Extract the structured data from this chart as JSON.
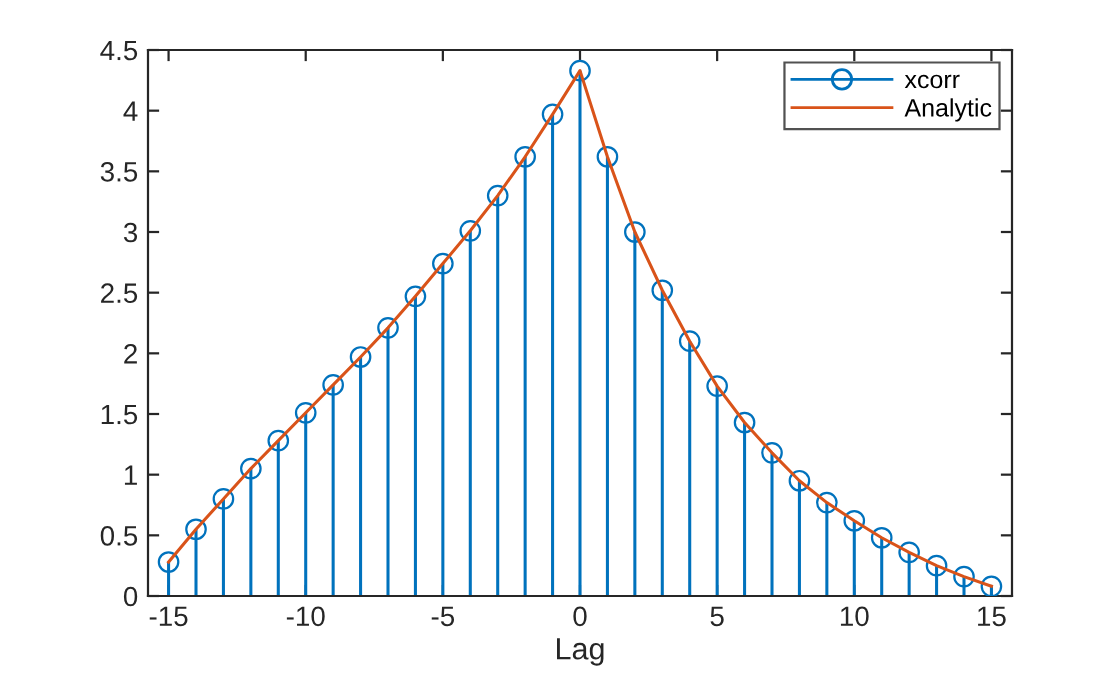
{
  "chart_data": {
    "type": "line",
    "xlabel": "Lag",
    "x": [
      -15,
      -14,
      -13,
      -12,
      -11,
      -10,
      -9,
      -8,
      -7,
      -6,
      -5,
      -4,
      -3,
      -2,
      -1,
      0,
      1,
      2,
      3,
      4,
      5,
      6,
      7,
      8,
      9,
      10,
      11,
      12,
      13,
      14,
      15
    ],
    "series": [
      {
        "name": "xcorr",
        "type": "lollipop",
        "color": "#0072bd",
        "marker": "circle",
        "values": [
          0.28,
          0.55,
          0.8,
          1.05,
          1.28,
          1.51,
          1.74,
          1.97,
          2.21,
          2.47,
          2.74,
          3.01,
          3.3,
          3.62,
          3.97,
          4.33,
          3.62,
          3.0,
          2.52,
          2.1,
          1.73,
          1.43,
          1.18,
          0.95,
          0.77,
          0.62,
          0.48,
          0.36,
          0.25,
          0.16,
          0.08
        ]
      },
      {
        "name": "Analytic",
        "color": "#d95319",
        "marker": "none",
        "values": [
          0.28,
          0.55,
          0.8,
          1.05,
          1.28,
          1.51,
          1.74,
          1.97,
          2.21,
          2.47,
          2.74,
          3.01,
          3.3,
          3.62,
          3.97,
          4.33,
          3.62,
          3.0,
          2.52,
          2.1,
          1.73,
          1.43,
          1.18,
          0.95,
          0.77,
          0.62,
          0.48,
          0.36,
          0.25,
          0.16,
          0.08
        ]
      }
    ],
    "xlim": [
      -15.75,
      15.75
    ],
    "xticks": [
      -15,
      -10,
      -5,
      0,
      5,
      10,
      15
    ],
    "ylim": [
      0,
      4.5
    ],
    "yticks": [
      0,
      0.5,
      1,
      1.5,
      2,
      2.5,
      3,
      3.5,
      4,
      4.5
    ],
    "grid": false,
    "legend": "top right"
  }
}
